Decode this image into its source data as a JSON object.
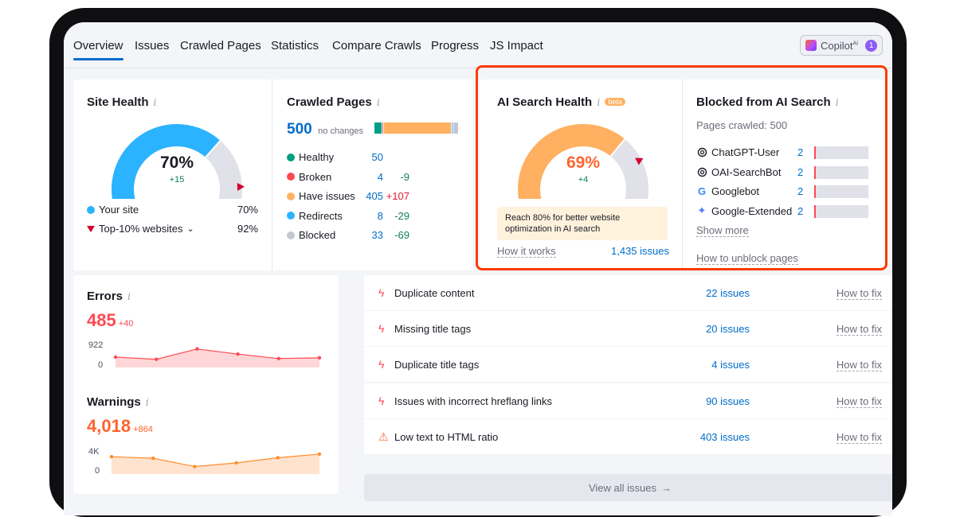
{
  "tabs": [
    {
      "label": "Overview",
      "active": true
    },
    {
      "label": "Issues"
    },
    {
      "label": "Crawled Pages"
    },
    {
      "label": "Statistics"
    },
    {
      "label": "Compare Crawls"
    },
    {
      "label": "Progress"
    },
    {
      "label": "JS Impact"
    }
  ],
  "copilot": {
    "label": "Copilot",
    "sup": "AI",
    "badge": "1"
  },
  "site_health": {
    "title": "Site Health",
    "value": "70%",
    "value_fraction": 0.7,
    "delta": "+15",
    "legend": [
      {
        "label": "Your site",
        "value": "70%"
      },
      {
        "label": "Top-10% websites",
        "value": "92%"
      }
    ],
    "top10_fraction": 0.92
  },
  "crawled_pages": {
    "title": "Crawled Pages",
    "total": "500",
    "total_note": "no changes",
    "rows": [
      {
        "label": "Healthy",
        "value": "50",
        "delta": "",
        "color": "#009f81"
      },
      {
        "label": "Broken",
        "value": "4",
        "delta": "-9",
        "color": "#ff4953"
      },
      {
        "label": "Have issues",
        "value": "405",
        "delta": "+107",
        "color": "#ffb061"
      },
      {
        "label": "Redirects",
        "value": "8",
        "delta": "-29",
        "color": "#2bb3ff"
      },
      {
        "label": "Blocked",
        "value": "33",
        "delta": "-69",
        "color": "#c4c7cf"
      }
    ]
  },
  "ai_search_health": {
    "title": "AI Search Health",
    "badge": "beta",
    "value": "69%",
    "value_fraction": 0.69,
    "delta": "+4",
    "note": "Reach 80% for better website optimization in AI search",
    "how_it_works": "How it works",
    "issues_link": "1,435 issues"
  },
  "blocked_ai": {
    "title": "Blocked from AI Search",
    "pages_crawled": "Pages crawled: 500",
    "bots": [
      {
        "label": "ChatGPT-User",
        "count": "2",
        "icon": "openai-icon"
      },
      {
        "label": "OAI-SearchBot",
        "count": "2",
        "icon": "openai-icon"
      },
      {
        "label": "Googlebot",
        "count": "2",
        "icon": "google-icon"
      },
      {
        "label": "Google-Extended",
        "count": "2",
        "icon": "gemini-icon"
      }
    ],
    "show_more": "Show more",
    "how_to_unblock": "How to unblock pages"
  },
  "errors": {
    "title": "Errors",
    "value": "485",
    "delta": "+40",
    "axis_top": "922",
    "axis_bottom": "0",
    "series": [
      65,
      50,
      120,
      85,
      55,
      60
    ],
    "max": 922
  },
  "warnings": {
    "title": "Warnings",
    "value": "4,018",
    "delta": "+864",
    "axis_top": "4K",
    "axis_bottom": "0",
    "series": [
      3200,
      2900,
      1300,
      2000,
      3000,
      3700
    ],
    "max": 4000
  },
  "issues": [
    {
      "label": "Duplicate content",
      "count": "22 issues",
      "fix": "How to fix",
      "type": "error"
    },
    {
      "label": "Missing title tags",
      "count": "20 issues",
      "fix": "How to fix",
      "type": "error"
    },
    {
      "label": "Duplicate title tags",
      "count": "4 issues",
      "fix": "How to fix",
      "type": "error"
    },
    {
      "label": "Issues with incorrect hreflang links",
      "count": "90 issues",
      "fix": "How to fix",
      "type": "error"
    },
    {
      "label": "Low text to HTML ratio",
      "count": "403 issues",
      "fix": "How to fix",
      "type": "warning"
    }
  ],
  "view_all": "View all issues",
  "colors": {
    "accent": "#006dca",
    "gauge_blue": "#2bb3ff",
    "gauge_orange": "#ffb061",
    "error": "#ff4953",
    "warning": "#ff8c2b"
  }
}
